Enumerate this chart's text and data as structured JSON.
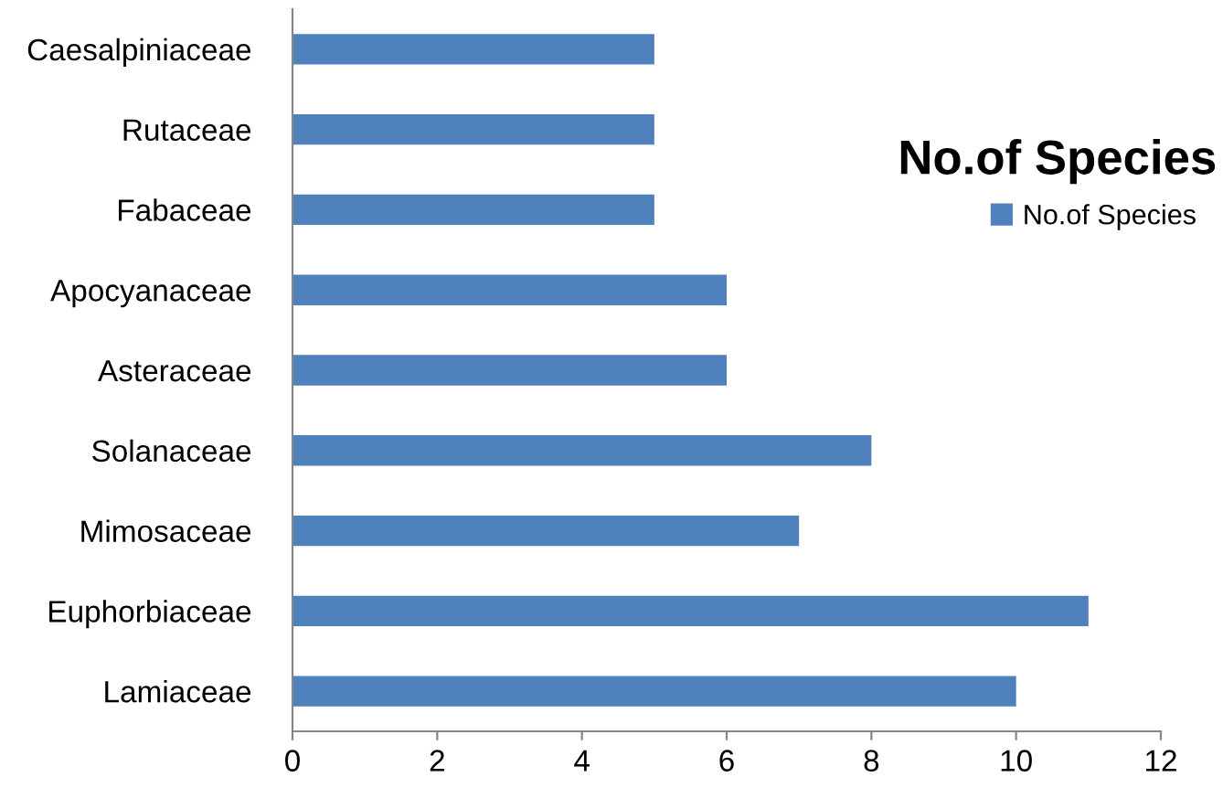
{
  "chart_data": {
    "type": "bar",
    "orientation": "horizontal",
    "title": "No.of Species",
    "categories": [
      "Caesalpiniaceae",
      "Rutaceae",
      "Fabaceae",
      "Apocyanaceae",
      "Asteraceae",
      "Solanaceae",
      "Mimosaceae",
      "Euphorbiaceae",
      "Lamiaceae"
    ],
    "series": [
      {
        "name": "No.of Species",
        "color": "#4f81bd",
        "values": [
          5,
          5,
          5,
          6,
          6,
          8,
          7,
          11,
          10
        ]
      }
    ],
    "xlim": [
      0,
      12
    ],
    "xticks": [
      0,
      2,
      4,
      6,
      8,
      10,
      12
    ],
    "grid": false,
    "legend": "right"
  }
}
